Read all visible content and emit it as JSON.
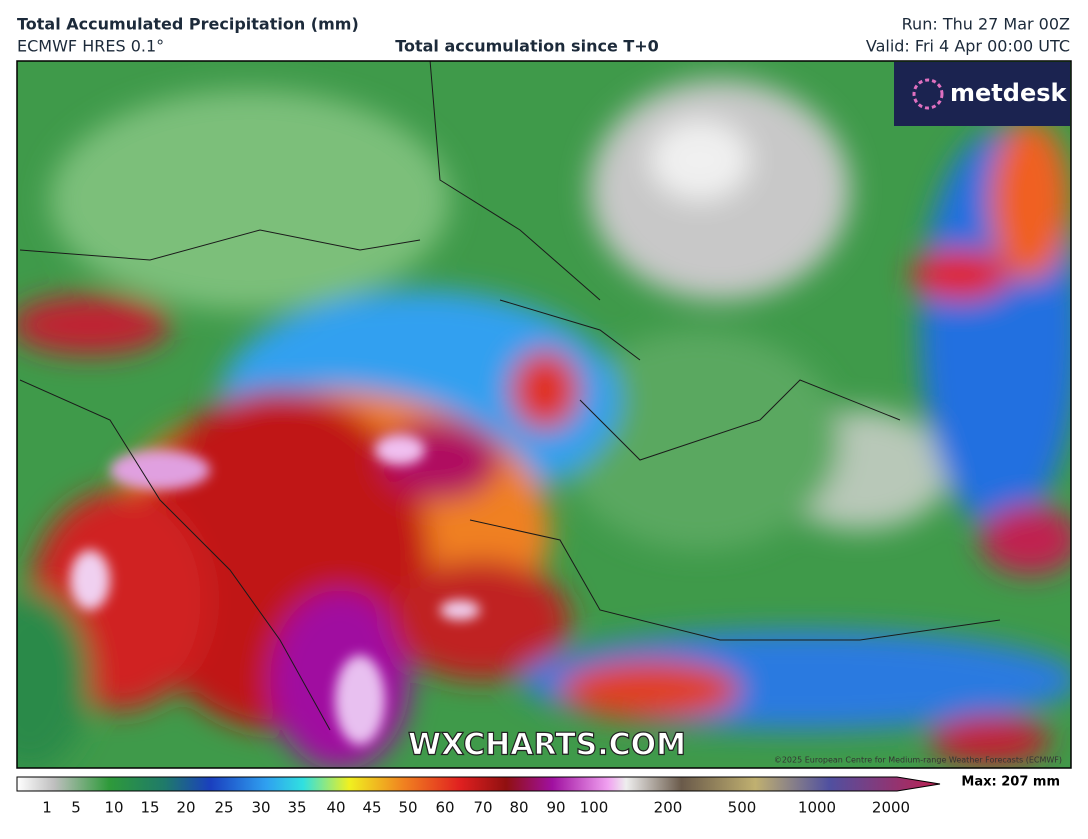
{
  "header": {
    "title": "Total Accumulated Precipitation (mm)",
    "model": "ECMWF HRES 0.1°",
    "subtitle": "Total accumulation since T+0",
    "run": "Run: Thu 27 Mar 00Z",
    "valid": "Valid: Fri 4 Apr 00:00 UTC"
  },
  "map": {
    "logo": "metdesk",
    "watermark": "WXCHARTS.COM",
    "copyright": "©2025 European Centre for Medium-range Weather Forecasts (ECMWF)"
  },
  "colorbar": {
    "ticks": [
      "1",
      "5",
      "10",
      "15",
      "20",
      "25",
      "30",
      "35",
      "40",
      "45",
      "50",
      "60",
      "70",
      "80",
      "90",
      "100",
      "200",
      "500",
      "1000",
      "2000"
    ],
    "max_label": "Max: 207 mm"
  }
}
